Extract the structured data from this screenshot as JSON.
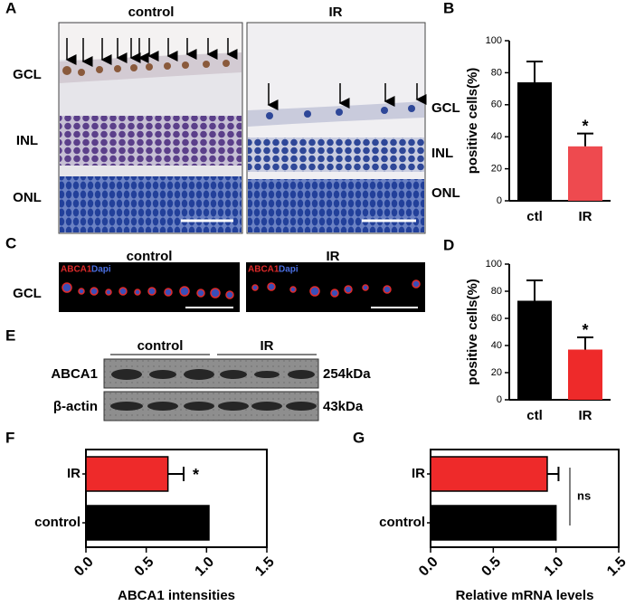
{
  "panel_labels": [
    "A",
    "B",
    "C",
    "D",
    "E",
    "F",
    "G"
  ],
  "panel_a": {
    "titles": [
      "control",
      "IR"
    ],
    "left_layers": [
      "GCL",
      "INL",
      "ONL"
    ],
    "right_layers": [
      "GCL",
      "INL",
      "ONL"
    ]
  },
  "panel_c": {
    "titles": [
      "control",
      "IR"
    ],
    "layer": "GCL",
    "stains": [
      [
        "ABCA1",
        "Dapi"
      ],
      [
        "ABCA1",
        "Dapi"
      ]
    ]
  },
  "panel_e": {
    "groups": [
      "control",
      "IR"
    ],
    "rows": [
      {
        "protein": "ABCA1",
        "size": "254kDa"
      },
      {
        "protein": "β-actin",
        "size": "43kDa"
      }
    ]
  },
  "chart_data": [
    {
      "type": "bar",
      "ylabel": "positive cells(%)",
      "categories": [
        "ctl",
        "IR"
      ],
      "values": [
        74,
        34
      ],
      "errors": [
        13,
        8
      ],
      "colors": [
        "#000000",
        "#ee4a4f"
      ],
      "ylim": [
        0,
        100
      ],
      "yticks": [
        0,
        20,
        40,
        60,
        80,
        100
      ],
      "annotation": "*"
    },
    {
      "type": "bar",
      "ylabel": "positive cells(%)",
      "categories": [
        "ctl",
        "IR"
      ],
      "values": [
        73,
        37
      ],
      "errors": [
        15,
        9
      ],
      "colors": [
        "#000000",
        "#ee2a2a"
      ],
      "ylim": [
        0,
        100
      ],
      "yticks": [
        0,
        20,
        40,
        60,
        80,
        100
      ],
      "annotation": "*"
    },
    {
      "type": "barh",
      "xlabel": "ABCA1 intensities",
      "categories": [
        "IR",
        "control"
      ],
      "values": [
        0.68,
        1.02
      ],
      "errors": [
        0.13,
        null
      ],
      "colors": [
        "#ee2a2a",
        "#000000"
      ],
      "xlim": [
        0,
        1.5
      ],
      "xticks": [
        {
          "value": 0,
          "label": "0.0"
        },
        0.5,
        {
          "value": 1,
          "label": "1.0"
        },
        1.5
      ],
      "annotation": "*"
    },
    {
      "type": "barh",
      "xlabel": "Relative mRNA levels",
      "categories": [
        "IR",
        "control"
      ],
      "values": [
        0.93,
        1.0
      ],
      "errors": [
        0.09,
        null
      ],
      "colors": [
        "#ee2a2a",
        "#000000"
      ],
      "xlim": [
        0,
        1.5
      ],
      "xticks": [
        {
          "value": 0,
          "label": "0.0"
        },
        0.5,
        {
          "value": 1,
          "label": "1.0"
        },
        1.5
      ],
      "annotation": "ns"
    }
  ]
}
